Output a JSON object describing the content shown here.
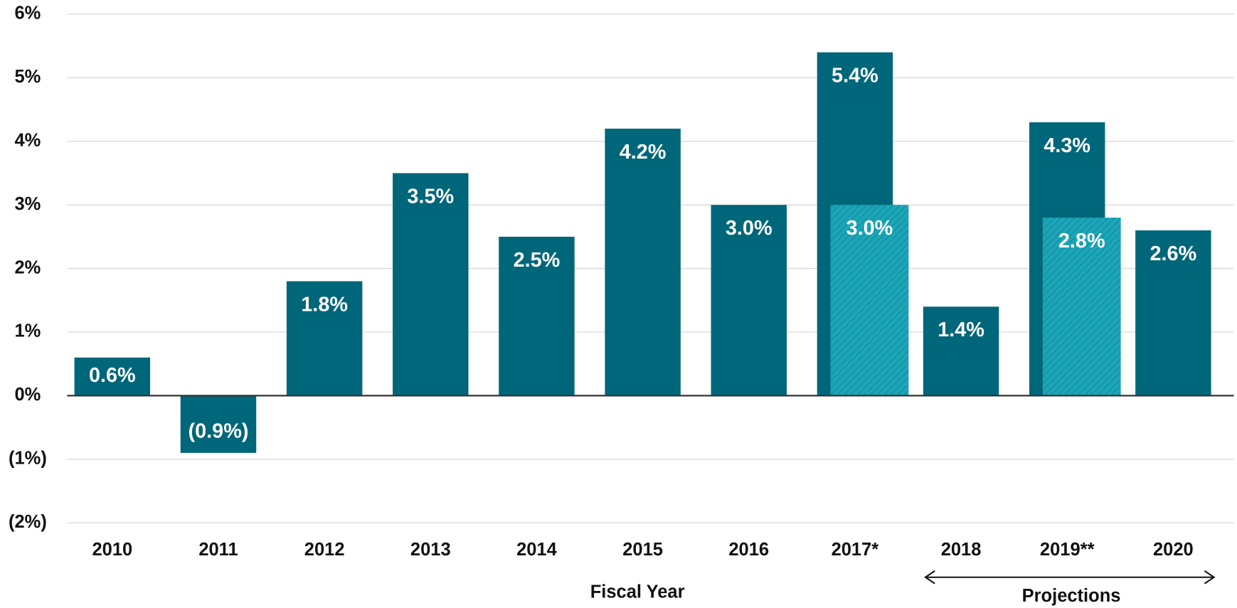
{
  "chart_data": {
    "type": "bar",
    "categories": [
      "2010",
      "2011",
      "2012",
      "2013",
      "2014",
      "2015",
      "2016",
      "2017*",
      "2018",
      "2019**",
      "2020"
    ],
    "series": [
      {
        "color": "#00667a",
        "values": [
          0.6,
          -0.9,
          1.8,
          3.5,
          2.5,
          4.2,
          3.0,
          5.4,
          1.4,
          4.3,
          2.6
        ],
        "value_labels": [
          "0.6%",
          "(0.9%)",
          "1.8%",
          "3.5%",
          "2.5%",
          "4.2%",
          "3.0%",
          "5.4%",
          "1.4%",
          "4.3%",
          "2.6%"
        ]
      },
      {
        "color": "#1aa6b8",
        "pattern": "hatch",
        "values": [
          null,
          null,
          null,
          null,
          null,
          null,
          null,
          3.0,
          null,
          2.8,
          null
        ],
        "value_labels": [
          null,
          null,
          null,
          null,
          null,
          null,
          null,
          "3.0%",
          null,
          "2.8%",
          null
        ]
      }
    ],
    "ylim": [
      -2,
      6
    ],
    "yticks": [
      {
        "value": -2,
        "label": "(2%)"
      },
      {
        "value": -1,
        "label": "(1%)"
      },
      {
        "value": 0,
        "label": "0%"
      },
      {
        "value": 1,
        "label": "1%"
      },
      {
        "value": 2,
        "label": "2%"
      },
      {
        "value": 3,
        "label": "3%"
      },
      {
        "value": 4,
        "label": "4%"
      },
      {
        "value": 5,
        "label": "5%"
      },
      {
        "value": 6,
        "label": "6%"
      }
    ],
    "grid": true,
    "x_label": "Fiscal Year",
    "annotation": "Projections"
  }
}
